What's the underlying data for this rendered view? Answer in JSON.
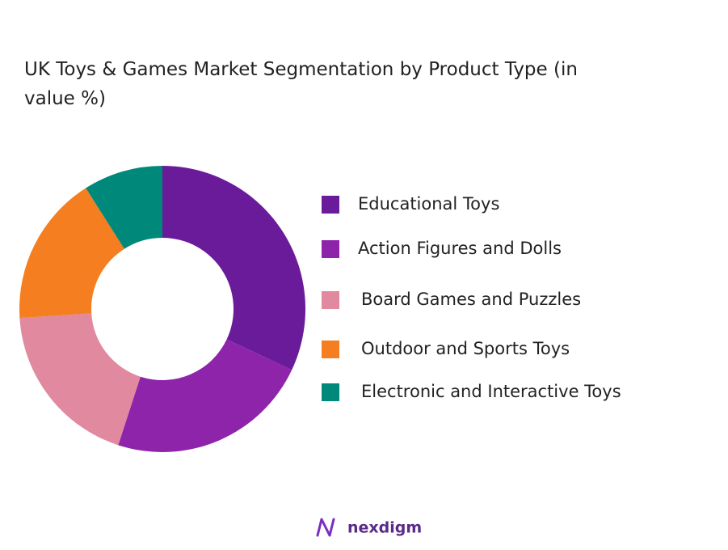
{
  "chart_data": {
    "type": "donut",
    "title": "UK Toys & Games Market Segmentation by Product Type  (in value %)",
    "categories": [
      "Educational Toys",
      "Action Figures and Dolls",
      "Board Games and Puzzles",
      "Outdoor and Sports Toys",
      "Electronic and Interactive Toys"
    ],
    "values": [
      32,
      23,
      19,
      17,
      9
    ],
    "colors": [
      "#6a1b9a",
      "#8e24aa",
      "#e0899f",
      "#f57f20",
      "#00897b"
    ],
    "legend": "right"
  },
  "brand": "nexdigm"
}
